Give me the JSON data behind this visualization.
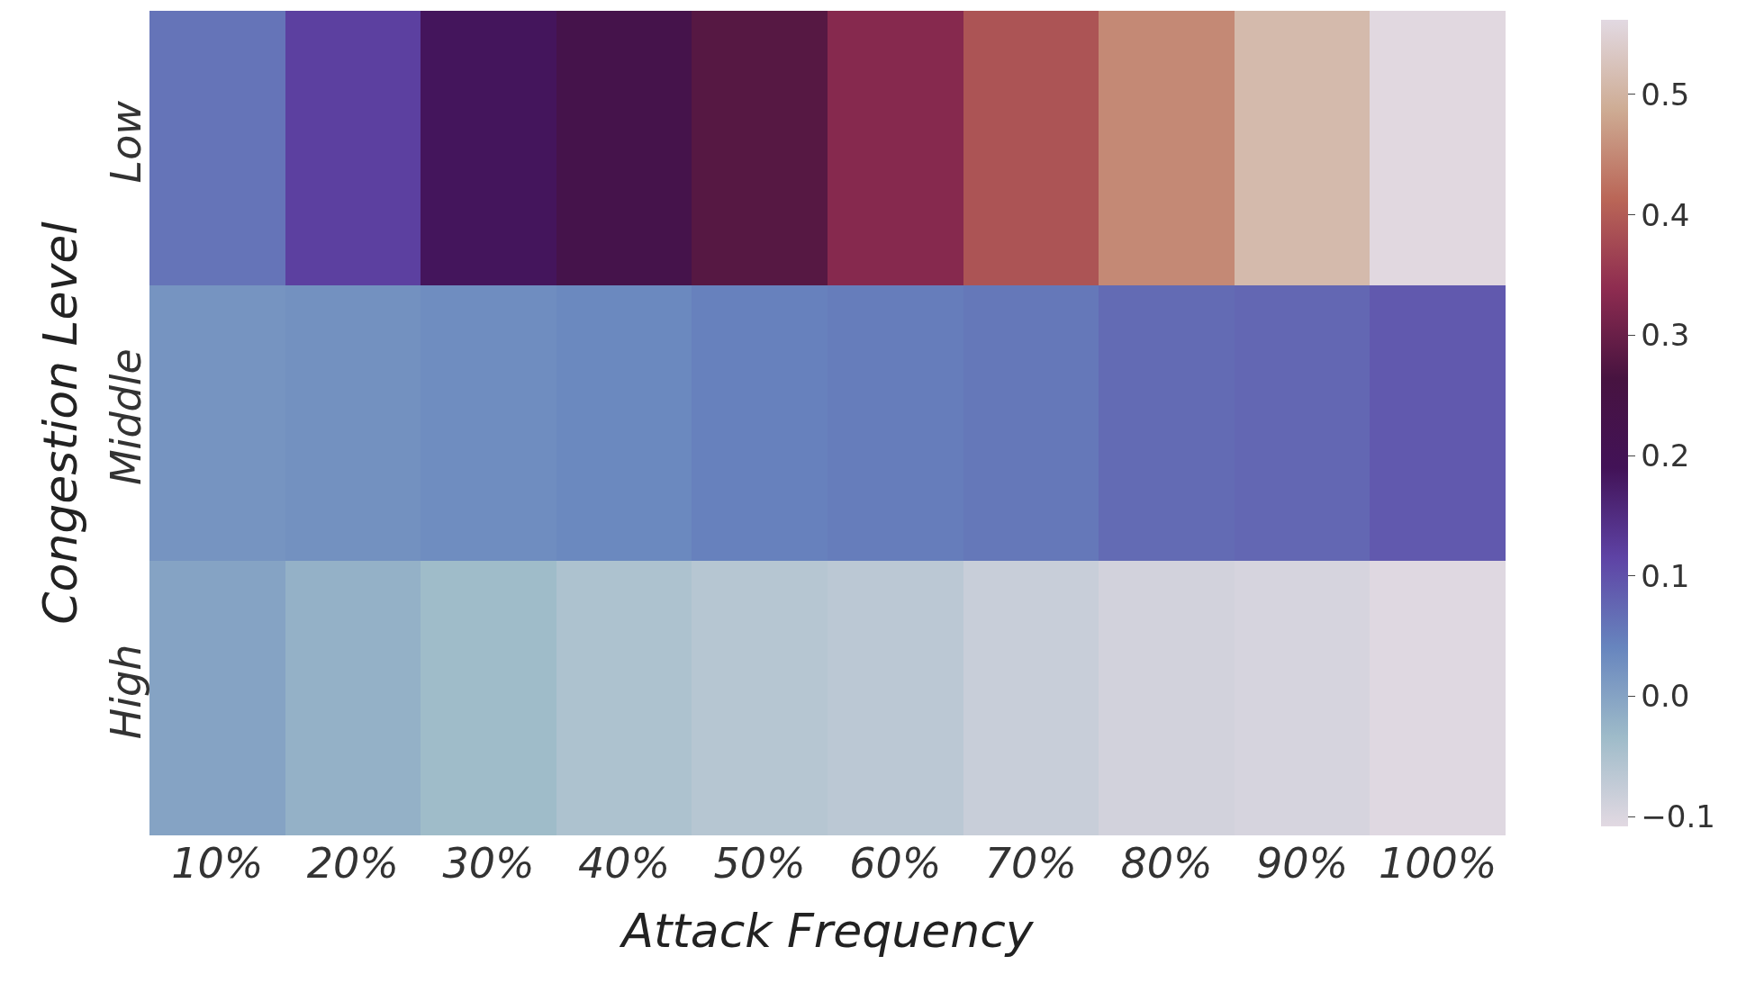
{
  "chart_data": {
    "type": "heatmap",
    "xlabel": "Attack Frequency",
    "ylabel": "Congestion Level",
    "categories": [
      "10%",
      "20%",
      "30%",
      "40%",
      "50%",
      "60%",
      "70%",
      "80%",
      "90%",
      "100%"
    ],
    "y_categories": [
      "Low",
      "Middle",
      "High"
    ],
    "cells": [
      [
        0.06,
        0.12,
        0.185,
        0.23,
        0.28,
        0.33,
        0.39,
        0.45,
        0.51,
        0.56
      ],
      [
        0.02,
        0.025,
        0.03,
        0.035,
        0.045,
        0.05,
        0.055,
        0.07,
        0.075,
        0.09
      ],
      [
        0.0,
        -0.02,
        -0.035,
        -0.05,
        -0.06,
        -0.065,
        -0.08,
        -0.09,
        -0.095,
        -0.105
      ]
    ],
    "clim": [
      -0.108,
      0.562
    ],
    "cticks": [
      {
        "value": -0.1,
        "label": "−0.1"
      },
      {
        "value": 0,
        "label": "0.0"
      },
      {
        "value": 0.1,
        "label": "0.1"
      },
      {
        "value": 0.2,
        "label": "0.2"
      },
      {
        "value": 0.3,
        "label": "0.3"
      },
      {
        "value": 0.4,
        "label": "0.4"
      },
      {
        "value": 0.5,
        "label": "0.5"
      }
    ]
  }
}
